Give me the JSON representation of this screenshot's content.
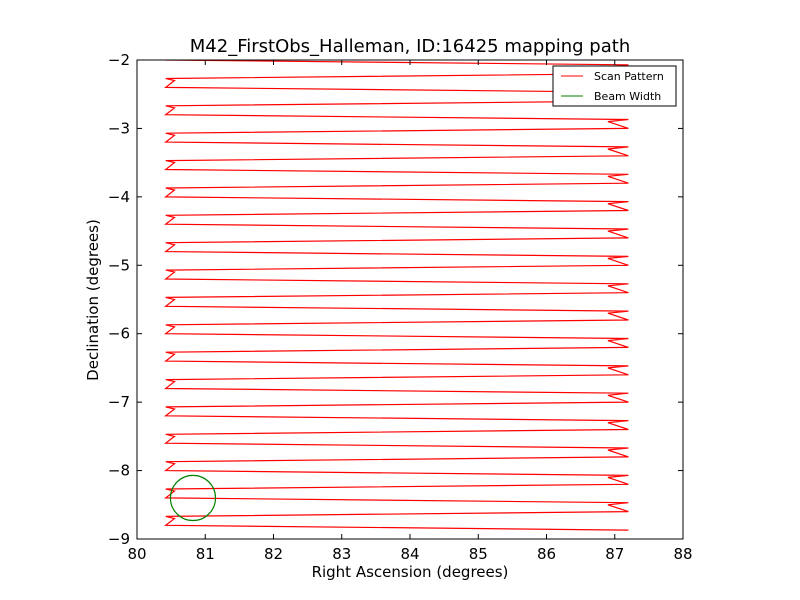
{
  "chart_data": {
    "type": "line",
    "title": "M42_FirstObs_Halleman, ID:16425 mapping path",
    "xlabel": "Right Ascension (degrees)",
    "ylabel": "Declination (degrees)",
    "xlim": [
      80,
      88
    ],
    "ylim": [
      -9,
      -2
    ],
    "x_ticks": [
      80,
      81,
      82,
      83,
      84,
      85,
      86,
      87,
      88
    ],
    "y_ticks": [
      -9,
      -8,
      -7,
      -6,
      -5,
      -4,
      -3,
      -2
    ],
    "x_tick_labels": [
      "80",
      "81",
      "82",
      "83",
      "84",
      "85",
      "86",
      "87",
      "88"
    ],
    "y_tick_labels": [
      "−9",
      "−8",
      "−7",
      "−6",
      "−5",
      "−4",
      "−3",
      "−2"
    ],
    "grid": false,
    "legend_position": "top-right",
    "series": [
      {
        "name": "Scan Pattern",
        "color": "#ff0000",
        "scan": {
          "ra_min": 80.42,
          "ra_max": 87.2,
          "ra_turn_near": 80.55,
          "ra_turn_far": 86.9,
          "dec_start": -2.0,
          "dec_end": -8.78,
          "dec_step": 0.2
        }
      },
      {
        "name": "Beam Width",
        "color": "#008000",
        "circle": {
          "ra": 80.82,
          "dec": -8.4,
          "radius_deg": 0.33
        }
      }
    ]
  }
}
